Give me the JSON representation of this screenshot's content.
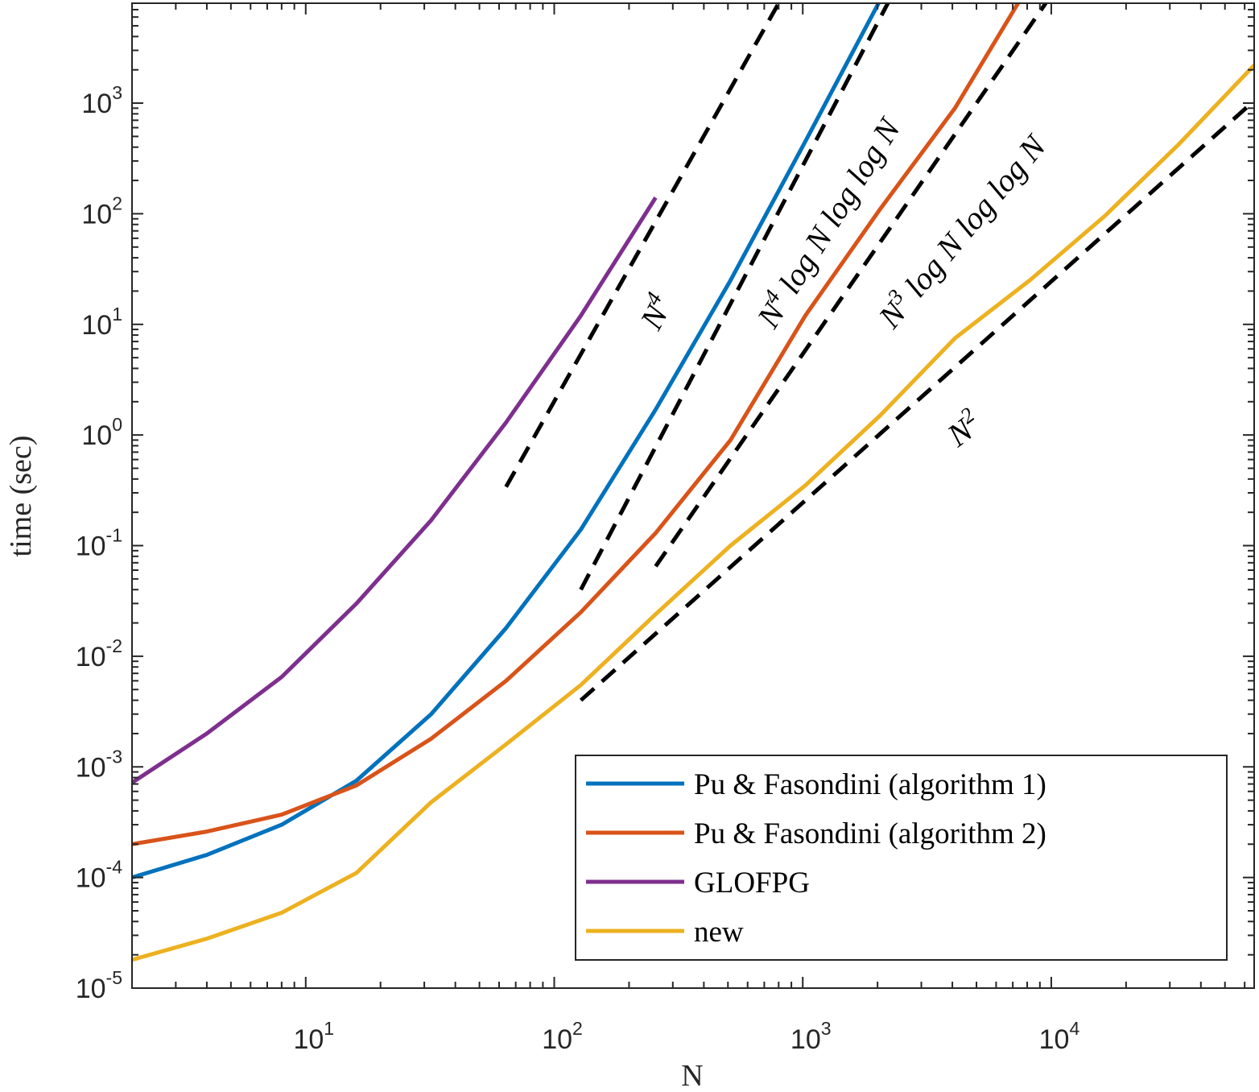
{
  "chart_data": {
    "type": "line",
    "title": "",
    "xlabel": "N",
    "ylabel": "time (sec)",
    "xscale": "log",
    "yscale": "log",
    "xlim": [
      2,
      65536
    ],
    "ylim": [
      1e-05,
      8000
    ],
    "grid": false,
    "legend_position": "bottom-right",
    "x_ticks": [
      {
        "base": "10",
        "exp": "1",
        "value": 10
      },
      {
        "base": "10",
        "exp": "2",
        "value": 100
      },
      {
        "base": "10",
        "exp": "3",
        "value": 1000
      },
      {
        "base": "10",
        "exp": "4",
        "value": 10000
      }
    ],
    "y_ticks": [
      {
        "base": "10",
        "exp": "-5",
        "value": 1e-05
      },
      {
        "base": "10",
        "exp": "-4",
        "value": 0.0001
      },
      {
        "base": "10",
        "exp": "-3",
        "value": 0.001
      },
      {
        "base": "10",
        "exp": "-2",
        "value": 0.01
      },
      {
        "base": "10",
        "exp": "-1",
        "value": 0.1
      },
      {
        "base": "10",
        "exp": "0",
        "value": 1
      },
      {
        "base": "10",
        "exp": "1",
        "value": 10
      },
      {
        "base": "10",
        "exp": "2",
        "value": 100
      },
      {
        "base": "10",
        "exp": "3",
        "value": 1000
      }
    ],
    "series": [
      {
        "name": "Pu & Fasondini (algorithm 1)",
        "color": "#0072BD",
        "x": [
          2,
          4,
          8,
          16,
          32,
          64,
          128,
          256,
          512,
          1024,
          2048
        ],
        "y": [
          0.0001,
          0.00016,
          0.0003,
          0.00075,
          0.003,
          0.018,
          0.14,
          1.7,
          25,
          450,
          8500
        ]
      },
      {
        "name": "Pu & Fasondini (algorithm 2)",
        "color": "#D95319",
        "x": [
          2,
          4,
          8,
          16,
          32,
          64,
          128,
          256,
          512,
          1024,
          2048,
          4096,
          8192
        ],
        "y": [
          0.0002,
          0.00026,
          0.00037,
          0.00068,
          0.0018,
          0.006,
          0.025,
          0.13,
          0.9,
          12,
          110,
          900,
          12000
        ]
      },
      {
        "name": "GLOFPG",
        "color": "#7E2F8E",
        "x": [
          2,
          4,
          8,
          16,
          32,
          64,
          128,
          256
        ],
        "y": [
          0.00072,
          0.002,
          0.0065,
          0.03,
          0.17,
          1.3,
          12,
          140
        ]
      },
      {
        "name": "new",
        "color": "#EDB120",
        "x": [
          2,
          4,
          8,
          16,
          32,
          64,
          128,
          256,
          512,
          1024,
          2048,
          4096,
          8192,
          16384,
          32768,
          65536
        ],
        "y": [
          1.8e-05,
          2.8e-05,
          4.8e-05,
          0.00011,
          0.00048,
          0.0016,
          0.0055,
          0.024,
          0.1,
          0.35,
          1.5,
          7.5,
          25,
          95,
          430,
          2200
        ]
      }
    ],
    "reference_lines": [
      {
        "label": "N^4",
        "x": [
          64,
          800
        ],
        "y": [
          0.34,
          8000
        ]
      },
      {
        "label": "N^4 log N loglog N",
        "x": [
          128,
          2200
        ],
        "y": [
          0.04,
          8000
        ]
      },
      {
        "label": "N^3 log N loglog N",
        "x": [
          256,
          9500
        ],
        "y": [
          0.065,
          8000
        ]
      },
      {
        "label": "N^2",
        "x": [
          128,
          65536
        ],
        "y": [
          0.004,
          1050
        ]
      }
    ],
    "annotations": [
      {
        "base": "N",
        "sup": "4",
        "rest": ""
      },
      {
        "base": "N",
        "sup": "4",
        "rest": " log N log log N"
      },
      {
        "base": "N",
        "sup": "3",
        "rest": " log N log log N"
      },
      {
        "base": "N",
        "sup": "2",
        "rest": ""
      }
    ]
  }
}
